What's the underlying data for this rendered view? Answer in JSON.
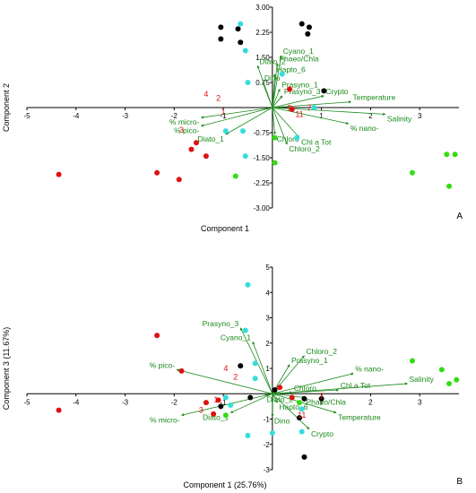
{
  "chart_data": [
    {
      "type": "scatter",
      "panel": "A",
      "xlabel": "Component 1",
      "ylabel": "Component 2",
      "xlim": [
        -5,
        3.8
      ],
      "ylim": [
        -3,
        3
      ],
      "x_ticks": [
        -5,
        -4,
        -3,
        -2,
        -1,
        1,
        2,
        3
      ],
      "y_ticks": [
        -3.0,
        -2.25,
        -1.5,
        -0.75,
        0.75,
        1.5,
        2.25,
        3.0
      ],
      "x_tick_labels": [
        "-5",
        "-4",
        "-3",
        "-2",
        "-1",
        "1",
        "2",
        "3"
      ],
      "y_tick_labels": [
        "-3.00",
        "-2.25",
        "-1.50",
        "-0.75",
        "0.75",
        "1.50",
        "2.25",
        "3.00"
      ],
      "vectors": [
        {
          "label": "Cyano_1",
          "x": 0.18,
          "y": 1.55
        },
        {
          "label": "Phaeo/Chla",
          "x": 0.1,
          "y": 1.32
        },
        {
          "label": "Diato_2",
          "x": -0.3,
          "y": 1.25
        },
        {
          "label": "Hapto_6",
          "x": 0.05,
          "y": 1.0
        },
        {
          "label": "Dino",
          "x": -0.2,
          "y": 0.75
        },
        {
          "label": "Prasyno_1",
          "x": 0.15,
          "y": 0.55
        },
        {
          "label": "Prasyno_3",
          "x": 0.2,
          "y": 0.35
        },
        {
          "label": "Crypto",
          "x": 1.05,
          "y": 0.35
        },
        {
          "label": "Temperature",
          "x": 1.6,
          "y": 0.17
        },
        {
          "label": "Salinity",
          "x": 2.3,
          "y": -0.2
        },
        {
          "label": "% nano-",
          "x": 1.55,
          "y": -0.48
        },
        {
          "label": "Chl a Tot",
          "x": 0.55,
          "y": -0.9
        },
        {
          "label": "Chloro",
          "x": 0.05,
          "y": -0.8
        },
        {
          "label": "Chloro_2",
          "x": 0.3,
          "y": -1.1
        },
        {
          "label": "% micro-",
          "x": -1.45,
          "y": -0.3
        },
        {
          "label": "% pico-",
          "x": -1.45,
          "y": -0.55
        },
        {
          "label": "Diato_1",
          "x": -0.95,
          "y": -0.8
        }
      ],
      "point_labels": [
        {
          "text": "4",
          "x": -1.35,
          "y": 0.32
        },
        {
          "text": "2",
          "x": -1.1,
          "y": 0.2
        },
        {
          "text": "3",
          "x": -1.85,
          "y": -0.75
        },
        {
          "text": "9",
          "x": 0.35,
          "y": -0.1
        },
        {
          "text": "7",
          "x": 0.75,
          "y": -0.1
        },
        {
          "text": "11",
          "x": 0.55,
          "y": -0.28
        },
        {
          "text": "1",
          "x": -1.0,
          "y": -0.2
        }
      ],
      "series": [
        {
          "color": "#000000",
          "points": [
            [
              -1.05,
              2.4
            ],
            [
              -0.7,
              2.35
            ],
            [
              -1.05,
              2.05
            ],
            [
              -0.65,
              1.95
            ],
            [
              0.6,
              2.5
            ],
            [
              0.75,
              2.4
            ],
            [
              0.72,
              2.2
            ],
            [
              1.05,
              0.5
            ]
          ]
        },
        {
          "color": "#33dddd",
          "points": [
            [
              -0.65,
              2.5
            ],
            [
              -0.55,
              1.7
            ],
            [
              0.2,
              1.0
            ],
            [
              -0.5,
              0.75
            ],
            [
              0.85,
              0.0
            ],
            [
              0.5,
              -0.9
            ],
            [
              -0.55,
              -1.45
            ],
            [
              -0.6,
              -0.7
            ],
            [
              -0.95,
              -0.7
            ]
          ]
        },
        {
          "color": "#dd1111",
          "points": [
            [
              -4.35,
              -2.0
            ],
            [
              -2.35,
              -1.95
            ],
            [
              -1.9,
              -2.15
            ],
            [
              -1.55,
              -1.05
            ],
            [
              -1.65,
              -1.25
            ],
            [
              -1.35,
              -1.45
            ],
            [
              0.35,
              0.55
            ],
            [
              0.4,
              -0.05
            ]
          ]
        },
        {
          "color": "#33dd11",
          "points": [
            [
              -0.75,
              -2.05
            ],
            [
              0.05,
              -0.9
            ],
            [
              0.05,
              -1.65
            ],
            [
              2.85,
              -1.95
            ],
            [
              3.55,
              -1.4
            ],
            [
              3.72,
              -1.4
            ],
            [
              3.6,
              -2.35
            ]
          ]
        }
      ]
    },
    {
      "type": "scatter",
      "panel": "B",
      "xlabel": "Component 1 (25.76%)",
      "ylabel": "Component 3 (11.67%)",
      "xlim": [
        -5,
        3.8
      ],
      "ylim": [
        -3,
        5
      ],
      "x_ticks": [
        -5,
        -4,
        -3,
        -2,
        -1,
        1,
        2,
        3
      ],
      "y_ticks": [
        -3,
        -2,
        -1,
        1,
        2,
        3,
        4,
        5
      ],
      "x_tick_labels": [
        "-5",
        "-4",
        "-3",
        "-2",
        "-1",
        "1",
        "2",
        "3"
      ],
      "y_tick_labels": [
        "-3",
        "-2",
        "-1",
        "1",
        "2",
        "3",
        "4",
        "5"
      ],
      "vectors": [
        {
          "label": "Prasyno_3",
          "x": -0.65,
          "y": 2.6
        },
        {
          "label": "Cyano_1",
          "x": -0.4,
          "y": 2.05
        },
        {
          "label": "Chloro_2",
          "x": 0.65,
          "y": 1.5
        },
        {
          "label": "Prasyno_1",
          "x": 0.35,
          "y": 1.15
        },
        {
          "label": "% nano-",
          "x": 1.65,
          "y": 0.8
        },
        {
          "label": "% pico-",
          "x": -1.95,
          "y": 0.95
        },
        {
          "label": "Salinity",
          "x": 2.75,
          "y": 0.4
        },
        {
          "label": "Chl a Tot",
          "x": 1.35,
          "y": 0.15
        },
        {
          "label": "Chloro",
          "x": 0.4,
          "y": 0.05
        },
        {
          "label": "Diato_2",
          "x": -0.15,
          "y": -0.05
        },
        {
          "label": "Phaeo/Chla",
          "x": 0.65,
          "y": -0.15
        },
        {
          "label": "Hapto_6",
          "x": 0.1,
          "y": -0.35
        },
        {
          "label": "Temperature",
          "x": 1.3,
          "y": -0.75
        },
        {
          "label": "Dino",
          "x": 0.0,
          "y": -0.9
        },
        {
          "label": "Crypto",
          "x": 0.75,
          "y": -1.4
        },
        {
          "label": "Diato_1",
          "x": -0.85,
          "y": -0.75
        },
        {
          "label": "% micro-",
          "x": -1.85,
          "y": -0.85
        }
      ],
      "point_labels": [
        {
          "text": "4",
          "x": -0.95,
          "y": 0.9
        },
        {
          "text": "2",
          "x": -0.75,
          "y": 0.55
        },
        {
          "text": "3",
          "x": -1.45,
          "y": -0.75
        },
        {
          "text": "1",
          "x": -1.15,
          "y": -0.35
        },
        {
          "text": "11",
          "x": 0.6,
          "y": -0.95
        },
        {
          "text": "7",
          "x": 1.0,
          "y": -0.2
        }
      ],
      "series": [
        {
          "color": "#000000",
          "points": [
            [
              -0.65,
              1.1
            ],
            [
              -1.05,
              -0.5
            ],
            [
              -0.45,
              -0.15
            ],
            [
              0.05,
              0.15
            ],
            [
              0.65,
              -0.2
            ],
            [
              1.0,
              -0.2
            ],
            [
              0.55,
              -0.95
            ],
            [
              0.65,
              -2.5
            ]
          ]
        },
        {
          "color": "#33dddd",
          "points": [
            [
              -0.5,
              4.3
            ],
            [
              -0.55,
              2.5
            ],
            [
              -0.35,
              1.2
            ],
            [
              -0.35,
              0.6
            ],
            [
              -0.95,
              -0.15
            ],
            [
              -0.85,
              -0.45
            ],
            [
              -0.5,
              -1.65
            ],
            [
              0.0,
              -1.55
            ],
            [
              0.6,
              -0.6
            ],
            [
              0.6,
              -1.5
            ]
          ]
        },
        {
          "color": "#dd1111",
          "points": [
            [
              -4.35,
              -0.65
            ],
            [
              -2.35,
              2.3
            ],
            [
              -1.85,
              0.9
            ],
            [
              -1.35,
              -0.35
            ],
            [
              -1.2,
              -0.8
            ],
            [
              -1.1,
              -0.25
            ],
            [
              0.15,
              0.25
            ],
            [
              0.4,
              -0.15
            ]
          ]
        },
        {
          "color": "#33dd11",
          "points": [
            [
              -0.95,
              -0.85
            ],
            [
              0.55,
              -0.35
            ],
            [
              2.85,
              1.3
            ],
            [
              3.45,
              0.95
            ],
            [
              3.6,
              0.4
            ],
            [
              3.75,
              0.55
            ]
          ]
        }
      ]
    }
  ]
}
